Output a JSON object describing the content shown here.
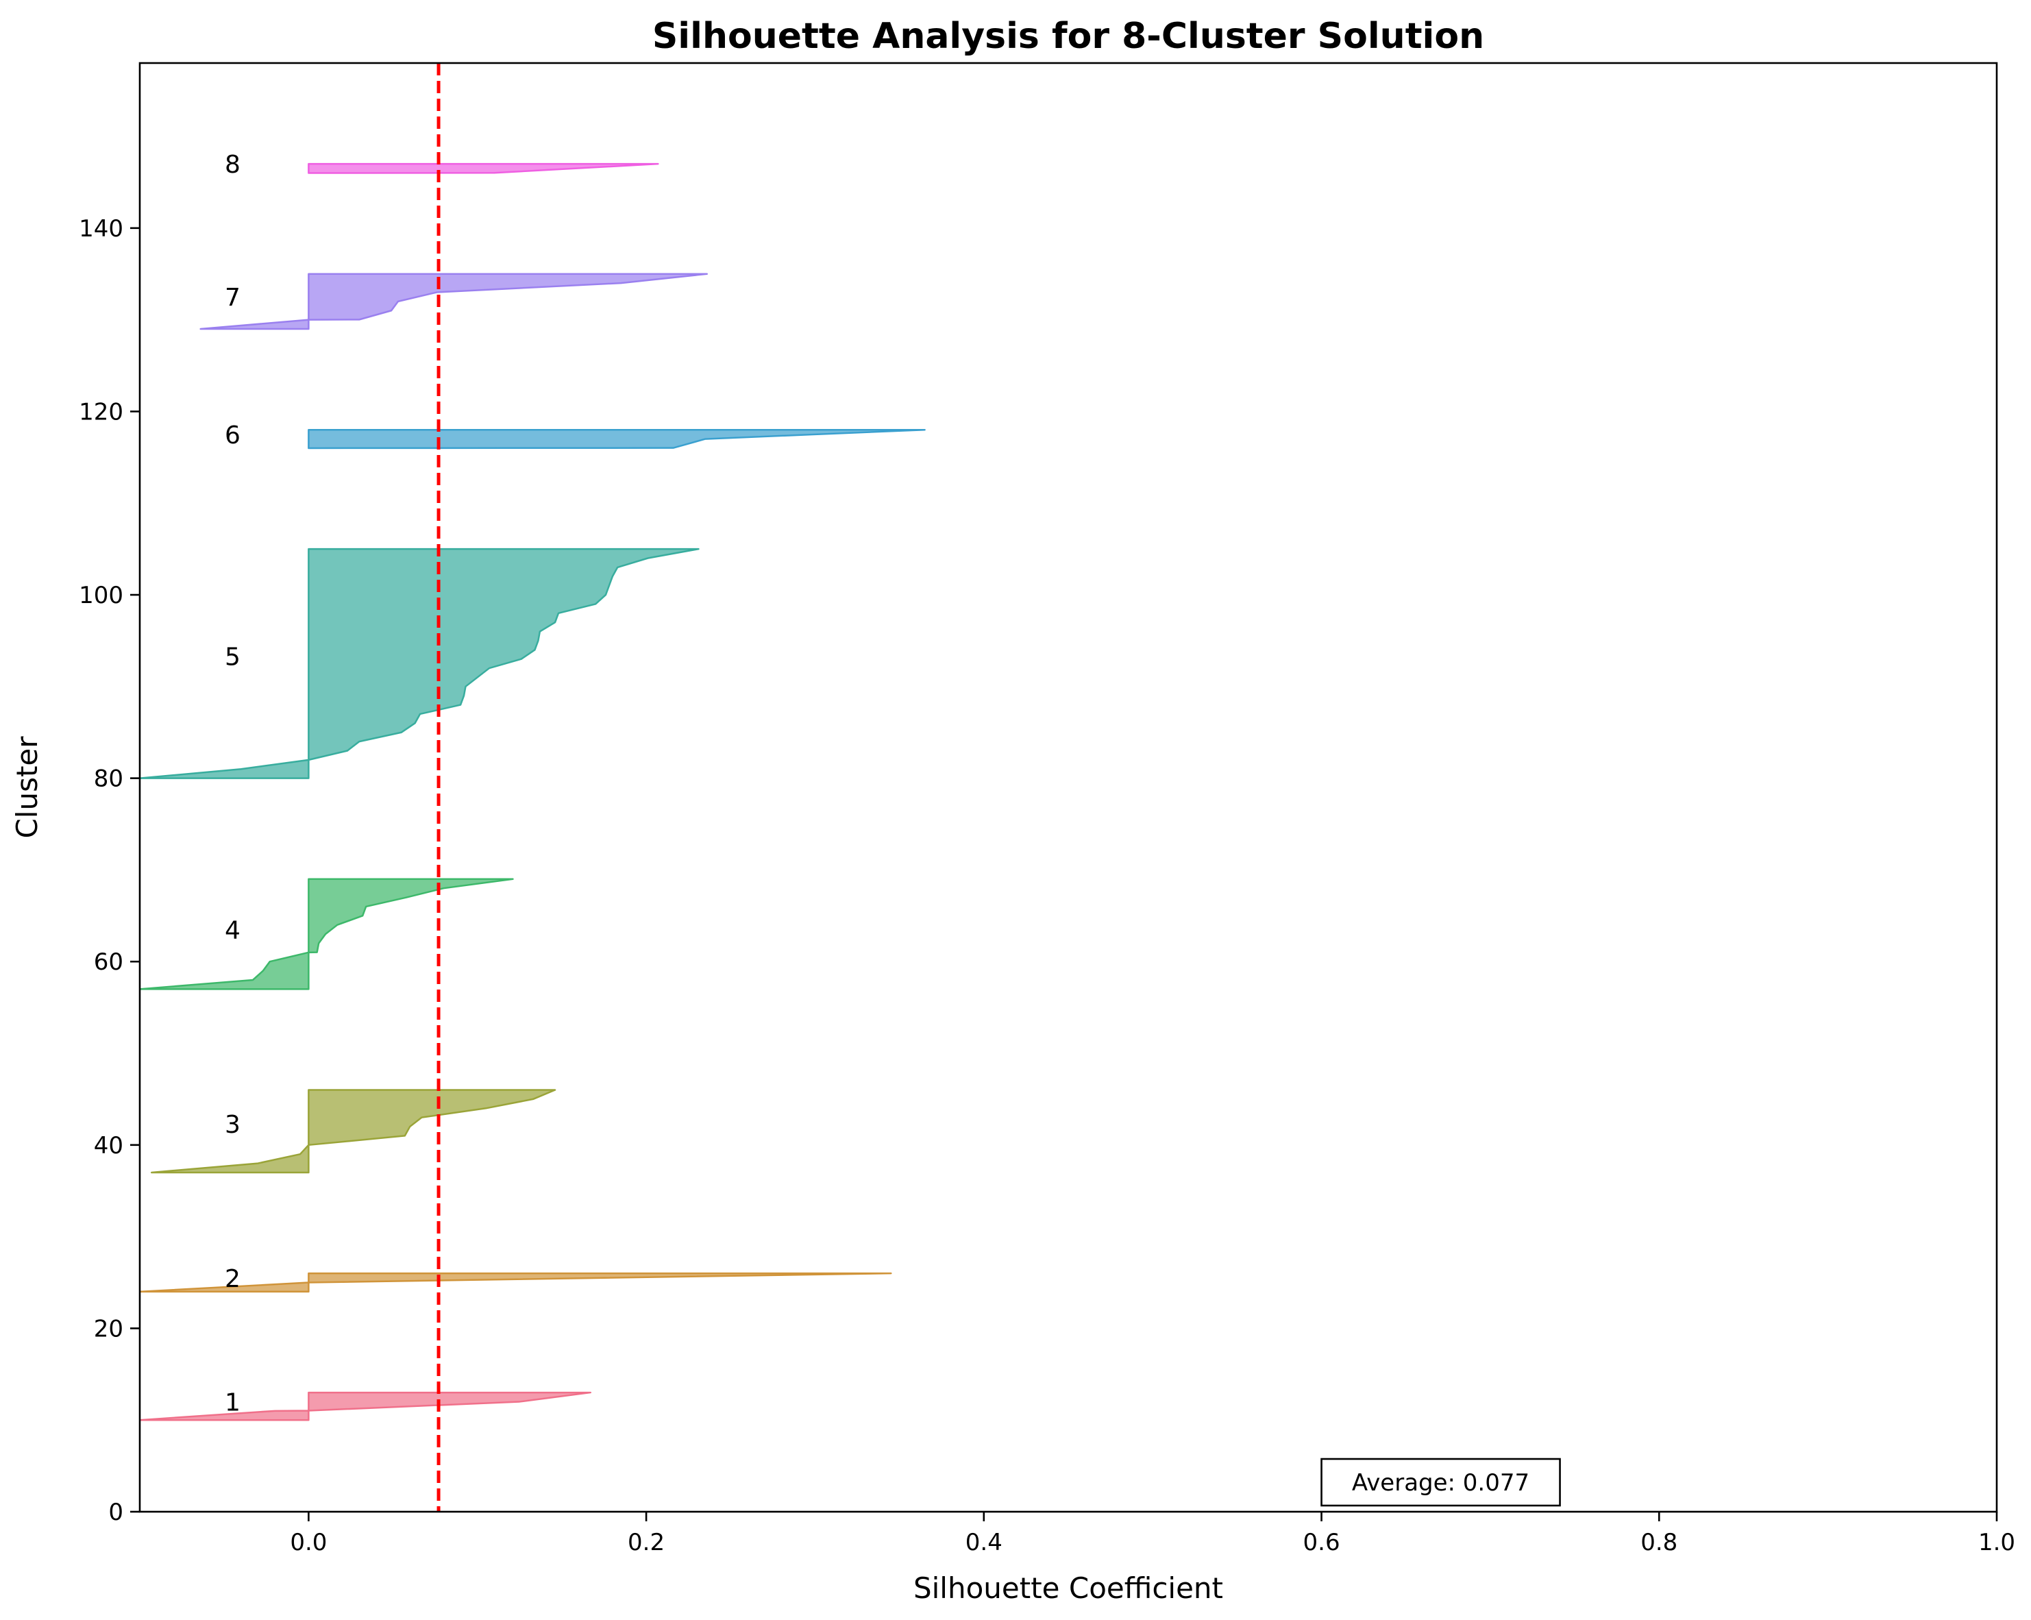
{
  "chart_data": {
    "type": "area",
    "title": "Silhouette Analysis for 8-Cluster Solution",
    "xlabel": "Silhouette Coefficient",
    "ylabel": "Cluster",
    "xlim": [
      -0.1,
      1.0
    ],
    "ylim": [
      0,
      158
    ],
    "xticks": [
      "0.0",
      "0.2",
      "0.4",
      "0.6",
      "0.8",
      "1.0"
    ],
    "xtick_values": [
      0.0,
      0.2,
      0.4,
      0.6,
      0.8,
      1.0
    ],
    "yticks": [
      "0",
      "20",
      "40",
      "60",
      "80",
      "100",
      "120",
      "140"
    ],
    "ytick_values": [
      0,
      20,
      40,
      60,
      80,
      100,
      120,
      140
    ],
    "grid": false,
    "average_silhouette": 0.077,
    "average_label": "Average: 0.077",
    "average_line_color": "#ff0000",
    "clusters": [
      {
        "label": "1",
        "color": "#f0708a",
        "label_y": 12,
        "profile": [
          [
            10,
            -0.1
          ],
          [
            11,
            -0.02
          ],
          [
            11.02,
            0.0
          ],
          [
            12,
            0.125
          ],
          [
            13,
            0.167
          ]
        ]
      },
      {
        "label": "2",
        "color": "#d0943a",
        "label_y": 25.5,
        "profile": [
          [
            24,
            -0.1
          ],
          [
            25,
            0.0
          ],
          [
            26,
            0.345
          ]
        ]
      },
      {
        "label": "3",
        "color": "#9aa438",
        "label_y": 42.3,
        "profile": [
          [
            37,
            -0.093
          ],
          [
            38,
            -0.03
          ],
          [
            39,
            -0.005
          ],
          [
            40,
            0.0
          ],
          [
            41,
            0.057
          ],
          [
            42,
            0.06
          ],
          [
            43,
            0.067
          ],
          [
            44,
            0.105
          ],
          [
            45,
            0.133
          ],
          [
            46,
            0.146
          ]
        ]
      },
      {
        "label": "4",
        "color": "#3db86a",
        "label_y": 63.5,
        "profile": [
          [
            57,
            -0.1
          ],
          [
            58,
            -0.033
          ],
          [
            59,
            -0.027
          ],
          [
            60,
            -0.023
          ],
          [
            61,
            0.0
          ],
          [
            61.02,
            0.005
          ],
          [
            62,
            0.006
          ],
          [
            63,
            0.01
          ],
          [
            64,
            0.017
          ],
          [
            65,
            0.032
          ],
          [
            66,
            0.034
          ],
          [
            67,
            0.058
          ],
          [
            68,
            0.08
          ],
          [
            69,
            0.121
          ]
        ]
      },
      {
        "label": "5",
        "color": "#38ad9e",
        "label_y": 93.3,
        "profile": [
          [
            80,
            -0.1
          ],
          [
            81,
            -0.04
          ],
          [
            82,
            0.0
          ],
          [
            83,
            0.023
          ],
          [
            84,
            0.03
          ],
          [
            85,
            0.055
          ],
          [
            86,
            0.063
          ],
          [
            87,
            0.066
          ],
          [
            88,
            0.09
          ],
          [
            89,
            0.092
          ],
          [
            90,
            0.093
          ],
          [
            91,
            0.1
          ],
          [
            92,
            0.107
          ],
          [
            93,
            0.126
          ],
          [
            94,
            0.134
          ],
          [
            95,
            0.136
          ],
          [
            96,
            0.137
          ],
          [
            97,
            0.146
          ],
          [
            98,
            0.148
          ],
          [
            99,
            0.17
          ],
          [
            100,
            0.176
          ],
          [
            101,
            0.178
          ],
          [
            102,
            0.18
          ],
          [
            103,
            0.183
          ],
          [
            104,
            0.201
          ],
          [
            105,
            0.231
          ]
        ]
      },
      {
        "label": "6",
        "color": "#3aa0cf",
        "label_y": 117.5,
        "profile": [
          [
            116,
            0.0
          ],
          [
            116.02,
            0.216
          ],
          [
            117,
            0.235
          ],
          [
            118,
            0.365
          ]
        ]
      },
      {
        "label": "7",
        "color": "#9a80ef",
        "label_y": 132.5,
        "profile": [
          [
            129,
            -0.064
          ],
          [
            130,
            0.0
          ],
          [
            130.02,
            0.03
          ],
          [
            131,
            0.049
          ],
          [
            132,
            0.053
          ],
          [
            133,
            0.076
          ],
          [
            134,
            0.185
          ],
          [
            135,
            0.236
          ]
        ]
      },
      {
        "label": "8",
        "color": "#ef5fe2",
        "label_y": 147,
        "profile": [
          [
            146,
            0.0
          ],
          [
            146.02,
            0.11
          ],
          [
            147,
            0.207
          ]
        ]
      }
    ]
  }
}
